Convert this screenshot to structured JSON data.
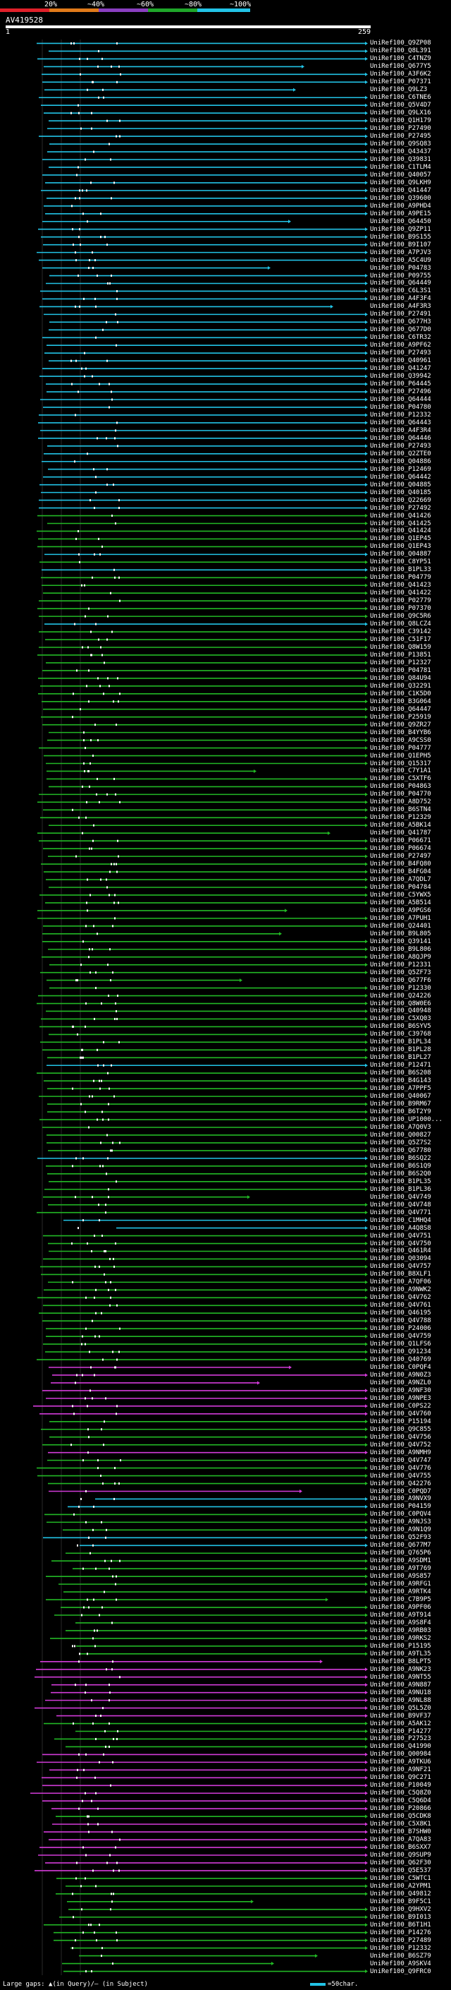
{
  "legend": {
    "labels": [
      "20%",
      "~40%",
      "~60%",
      "~80%",
      "~100%"
    ],
    "bands": [
      {
        "color": "#e0202a"
      },
      {
        "color": "#e07a1a"
      },
      {
        "color": "#8a3fc0"
      },
      {
        "color": "#1fa62a"
      },
      {
        "color": "#22c3e6"
      }
    ]
  },
  "query": {
    "id": "AV419528",
    "start": "1",
    "end": "259"
  },
  "colors": {
    "cyan": "#22c3e6",
    "green": "#22b825",
    "magenta": "#d23bd8",
    "white": "#ffffff",
    "grid": "#2a2a2a"
  },
  "hits": [
    {
      "id": "UniRef100_Q9ZP08",
      "c": "cyan"
    },
    {
      "id": "UniRef100_Q8L391",
      "c": "cyan"
    },
    {
      "id": "UniRef100_C4TNZ9",
      "c": "cyan"
    },
    {
      "id": "UniRef100_Q677Y5",
      "c": "cyan"
    },
    {
      "id": "UniRef100_A3F6K2",
      "c": "cyan"
    },
    {
      "id": "UniRef100_P07371",
      "c": "cyan"
    },
    {
      "id": "UniRef100_Q9LZ3",
      "c": "cyan"
    },
    {
      "id": "UniRef100_C6TNE6",
      "c": "cyan"
    },
    {
      "id": "UniRef100_Q5V4D7",
      "c": "cyan"
    },
    {
      "id": "UniRef100_Q9LX16",
      "c": "cyan"
    },
    {
      "id": "UniRef100_Q1H179",
      "c": "cyan"
    },
    {
      "id": "UniRef100_P27490",
      "c": "cyan"
    },
    {
      "id": "UniRef100_P27495",
      "c": "cyan"
    },
    {
      "id": "UniRef100_Q9SQ83",
      "c": "cyan"
    },
    {
      "id": "UniRef100_Q43437",
      "c": "cyan"
    },
    {
      "id": "UniRef100_Q39831",
      "c": "cyan"
    },
    {
      "id": "UniRef100_C1TLM4",
      "c": "cyan"
    },
    {
      "id": "UniRef100_Q40057",
      "c": "cyan"
    },
    {
      "id": "UniRef100_Q9LKH9",
      "c": "cyan"
    },
    {
      "id": "UniRef100_Q41447",
      "c": "cyan"
    },
    {
      "id": "UniRef100_Q39600",
      "c": "cyan"
    },
    {
      "id": "UniRef100_A9PHD4",
      "c": "cyan"
    },
    {
      "id": "UniRef100_A9PE15",
      "c": "cyan"
    },
    {
      "id": "UniRef100_Q64450",
      "c": "cyan"
    },
    {
      "id": "UniRef100_Q9ZP11",
      "c": "cyan"
    },
    {
      "id": "UniRef100_B9S155",
      "c": "cyan"
    },
    {
      "id": "UniRef100_B9I107",
      "c": "cyan"
    },
    {
      "id": "UniRef100_A7PJV3",
      "c": "cyan"
    },
    {
      "id": "UniRef100_A5C4U9",
      "c": "cyan"
    },
    {
      "id": "UniRef100_P04783",
      "c": "cyan"
    },
    {
      "id": "UniRef100_P09755",
      "c": "cyan"
    },
    {
      "id": "UniRef100_Q64449",
      "c": "cyan"
    },
    {
      "id": "UniRef100_C6L3S1",
      "c": "cyan"
    },
    {
      "id": "UniRef100_A4F3F4",
      "c": "cyan"
    },
    {
      "id": "UniRef100_A4F3R3",
      "c": "cyan"
    },
    {
      "id": "UniRef100_P27491",
      "c": "cyan"
    },
    {
      "id": "UniRef100_Q677H3",
      "c": "cyan"
    },
    {
      "id": "UniRef100_Q677D0",
      "c": "cyan"
    },
    {
      "id": "UniRef100_C6TR32",
      "c": "cyan"
    },
    {
      "id": "UniRef100_A9PF62",
      "c": "cyan"
    },
    {
      "id": "UniRef100_P27493",
      "c": "cyan"
    },
    {
      "id": "UniRef100_Q40961",
      "c": "cyan"
    },
    {
      "id": "UniRef100_Q41247",
      "c": "cyan"
    },
    {
      "id": "UniRef100_Q39942",
      "c": "cyan"
    },
    {
      "id": "UniRef100_P64445",
      "c": "cyan"
    },
    {
      "id": "UniRef100_P27496",
      "c": "cyan"
    },
    {
      "id": "UniRef100_Q64444",
      "c": "cyan"
    },
    {
      "id": "UniRef100_P04780",
      "c": "cyan"
    },
    {
      "id": "UniRef100_P12332",
      "c": "cyan"
    },
    {
      "id": "UniRef100_Q64443",
      "c": "cyan"
    },
    {
      "id": "UniRef100_A4F3R4",
      "c": "cyan"
    },
    {
      "id": "UniRef100_Q64446",
      "c": "cyan"
    },
    {
      "id": "UniRef100_P27493",
      "c": "cyan"
    },
    {
      "id": "UniRef100_Q2ZTE0",
      "c": "cyan"
    },
    {
      "id": "UniRef100_Q04886",
      "c": "cyan"
    },
    {
      "id": "UniRef100_P12469",
      "c": "cyan"
    },
    {
      "id": "UniRef100_Q64442",
      "c": "cyan"
    },
    {
      "id": "UniRef100_Q04885",
      "c": "cyan"
    },
    {
      "id": "UniRef100_Q40185",
      "c": "cyan"
    },
    {
      "id": "UniRef100_Q22669",
      "c": "cyan"
    },
    {
      "id": "UniRef100_P27492",
      "c": "cyan"
    },
    {
      "id": "UniRef100_Q41426",
      "c": "green"
    },
    {
      "id": "UniRef100_Q41425",
      "c": "green"
    },
    {
      "id": "UniRef100_Q41424",
      "c": "green"
    },
    {
      "id": "UniRef100_Q1EP45",
      "c": "green"
    },
    {
      "id": "UniRef100_Q1EP43",
      "c": "green"
    },
    {
      "id": "UniRef100_Q04887",
      "c": "cyan"
    },
    {
      "id": "UniRef100_C8YP51",
      "c": "green"
    },
    {
      "id": "UniRef100_B1PL33",
      "c": "cyan"
    },
    {
      "id": "UniRef100_P04779",
      "c": "green"
    },
    {
      "id": "UniRef100_Q41423",
      "c": "green"
    },
    {
      "id": "UniRef100_Q41422",
      "c": "green"
    },
    {
      "id": "UniRef100_P02779",
      "c": "green"
    },
    {
      "id": "UniRef100_P07370",
      "c": "green"
    },
    {
      "id": "UniRef100_Q9C5R6",
      "c": "green"
    },
    {
      "id": "UniRef100_Q8LCZ4",
      "c": "cyan"
    },
    {
      "id": "UniRef100_C39142",
      "c": "green"
    },
    {
      "id": "UniRef100_C51F17",
      "c": "green"
    },
    {
      "id": "UniRef100_Q8W159",
      "c": "green"
    },
    {
      "id": "UniRef100_P13851",
      "c": "green"
    },
    {
      "id": "UniRef100_P12327",
      "c": "green"
    },
    {
      "id": "UniRef100_P04781",
      "c": "green"
    },
    {
      "id": "UniRef100_Q84U94",
      "c": "green"
    },
    {
      "id": "UniRef100_Q32291",
      "c": "green"
    },
    {
      "id": "UniRef100_C1K5D0",
      "c": "green"
    },
    {
      "id": "UniRef100_B3G064",
      "c": "green"
    },
    {
      "id": "UniRef100_Q64447",
      "c": "green"
    },
    {
      "id": "UniRef100_P25919",
      "c": "green"
    },
    {
      "id": "UniRef100_Q9ZR27",
      "c": "green"
    },
    {
      "id": "UniRef100_B4YYB6",
      "c": "green"
    },
    {
      "id": "UniRef100_A9CSS0",
      "c": "green"
    },
    {
      "id": "UniRef100_P04777",
      "c": "green"
    },
    {
      "id": "UniRef100_Q1EPH5",
      "c": "green"
    },
    {
      "id": "UniRef100_Q15317",
      "c": "green"
    },
    {
      "id": "UniRef100_C7Y1A1",
      "c": "green"
    },
    {
      "id": "UniRef100_C5XTF6",
      "c": "green"
    },
    {
      "id": "UniRef100_P04863",
      "c": "green"
    },
    {
      "id": "UniRef100_P04770",
      "c": "green"
    },
    {
      "id": "UniRef100_A8D752",
      "c": "green"
    },
    {
      "id": "UniRef100_B6STN4",
      "c": "green"
    },
    {
      "id": "UniRef100_P12329",
      "c": "green"
    },
    {
      "id": "UniRef100_A5BK14",
      "c": "green"
    },
    {
      "id": "UniRef100_Q41787",
      "c": "green"
    },
    {
      "id": "UniRef100_P06671",
      "c": "green"
    },
    {
      "id": "UniRef100_P06674",
      "c": "green"
    },
    {
      "id": "UniRef100_P27497",
      "c": "green"
    },
    {
      "id": "UniRef100_B4FQ80",
      "c": "green"
    },
    {
      "id": "UniRef100_B4FG04",
      "c": "green"
    },
    {
      "id": "UniRef100_A7QDL7",
      "c": "green"
    },
    {
      "id": "UniRef100_P04784",
      "c": "green"
    },
    {
      "id": "UniRef100_C5YWX5",
      "c": "green"
    },
    {
      "id": "UniRef100_A5B514",
      "c": "green"
    },
    {
      "id": "UniRef100_A9PGS6",
      "c": "green"
    },
    {
      "id": "UniRef100_A7PUH1",
      "c": "green"
    },
    {
      "id": "UniRef100_Q24401",
      "c": "green"
    },
    {
      "id": "UniRef100_B9L805",
      "c": "green"
    },
    {
      "id": "UniRef100_Q39141",
      "c": "green"
    },
    {
      "id": "UniRef100_B9L806",
      "c": "green"
    },
    {
      "id": "UniRef100_A8QJP9",
      "c": "green"
    },
    {
      "id": "UniRef100_P12331",
      "c": "green"
    },
    {
      "id": "UniRef100_Q5ZF73",
      "c": "green"
    },
    {
      "id": "UniRef100_Q677F6",
      "c": "green"
    },
    {
      "id": "UniRef100_P12330",
      "c": "green"
    },
    {
      "id": "UniRef100_Q24226",
      "c": "green"
    },
    {
      "id": "UniRef100_Q8W0E6",
      "c": "green"
    },
    {
      "id": "UniRef100_Q40948",
      "c": "green"
    },
    {
      "id": "UniRef100_C5XQ03",
      "c": "green"
    },
    {
      "id": "UniRef100_B6SYV5",
      "c": "green"
    },
    {
      "id": "UniRef100_C39768",
      "c": "green"
    },
    {
      "id": "UniRef100_B1PL34",
      "c": "green"
    },
    {
      "id": "UniRef100_B1PL28",
      "c": "green"
    },
    {
      "id": "UniRef100_B1PL27",
      "c": "green"
    },
    {
      "id": "UniRef100_P12471",
      "c": "cyan"
    },
    {
      "id": "UniRef100_B6S208",
      "c": "green"
    },
    {
      "id": "UniRef100_B4G143",
      "c": "green"
    },
    {
      "id": "UniRef100_A7PPF5",
      "c": "green"
    },
    {
      "id": "UniRef100_Q40067",
      "c": "green"
    },
    {
      "id": "UniRef100_B9RM67",
      "c": "green"
    },
    {
      "id": "UniRef100_B6T2Y9",
      "c": "green"
    },
    {
      "id": "UniRef100_UP1000...",
      "c": "green"
    },
    {
      "id": "UniRef100_A7Q0V3",
      "c": "green"
    },
    {
      "id": "UniRef100_Q00827",
      "c": "green"
    },
    {
      "id": "UniRef100_Q5Z7S2",
      "c": "green"
    },
    {
      "id": "UniRef100_Q67780",
      "c": "green"
    },
    {
      "id": "UniRef100_B6SQ22",
      "c": "cyan"
    },
    {
      "id": "UniRef100_B6S1Q9",
      "c": "green"
    },
    {
      "id": "UniRef100_B6S2Q0",
      "c": "green"
    },
    {
      "id": "UniRef100_B1PL35",
      "c": "green"
    },
    {
      "id": "UniRef100_B1PL36",
      "c": "green"
    },
    {
      "id": "UniRef100_Q4V749",
      "c": "green"
    },
    {
      "id": "UniRef100_Q4V748",
      "c": "green"
    },
    {
      "id": "UniRef100_Q4V771",
      "c": "green"
    },
    {
      "id": "UniRef100_C1MHQ4",
      "c": "cyan"
    },
    {
      "id": "UniRef100_A4Q8S8",
      "c": "cyan"
    },
    {
      "id": "UniRef100_Q4V751",
      "c": "green"
    },
    {
      "id": "UniRef100_Q4V750",
      "c": "green"
    },
    {
      "id": "UniRef100_Q461R4",
      "c": "green"
    },
    {
      "id": "UniRef100_Q03094",
      "c": "green"
    },
    {
      "id": "UniRef100_Q4V757",
      "c": "green"
    },
    {
      "id": "UniRef100_B8XLF1",
      "c": "green"
    },
    {
      "id": "UniRef100_A7QF06",
      "c": "green"
    },
    {
      "id": "UniRef100_A9NWK2",
      "c": "green"
    },
    {
      "id": "UniRef100_Q4V762",
      "c": "green"
    },
    {
      "id": "UniRef100_Q4V761",
      "c": "green"
    },
    {
      "id": "UniRef100_Q46195",
      "c": "green"
    },
    {
      "id": "UniRef100_Q4V788",
      "c": "green"
    },
    {
      "id": "UniRef100_P24006",
      "c": "green"
    },
    {
      "id": "UniRef100_Q4V759",
      "c": "green"
    },
    {
      "id": "UniRef100_Q1LFS6",
      "c": "green"
    },
    {
      "id": "UniRef100_Q91234",
      "c": "green"
    },
    {
      "id": "UniRef100_Q40769",
      "c": "green"
    },
    {
      "id": "UniRef100_C0PQF4",
      "c": "magenta"
    },
    {
      "id": "UniRef100_A9N0Z3",
      "c": "magenta"
    },
    {
      "id": "UniRef100_A9NZL0",
      "c": "magenta"
    },
    {
      "id": "UniRef100_A9NF30",
      "c": "magenta"
    },
    {
      "id": "UniRef100_A9NPE3",
      "c": "magenta"
    },
    {
      "id": "UniRef100_C0PS22",
      "c": "magenta"
    },
    {
      "id": "UniRef100_Q4V760",
      "c": "magenta"
    },
    {
      "id": "UniRef100_P15194",
      "c": "green"
    },
    {
      "id": "UniRef100_Q9C855",
      "c": "green"
    },
    {
      "id": "UniRef100_Q4V756",
      "c": "green"
    },
    {
      "id": "UniRef100_Q4V752",
      "c": "green"
    },
    {
      "id": "UniRef100_A9NMH9",
      "c": "magenta"
    },
    {
      "id": "UniRef100_Q4V747",
      "c": "green"
    },
    {
      "id": "UniRef100_Q4V776",
      "c": "green"
    },
    {
      "id": "UniRef100_Q4V755",
      "c": "green"
    },
    {
      "id": "UniRef100_Q42276",
      "c": "green"
    },
    {
      "id": "UniRef100_C0PQD7",
      "c": "magenta"
    },
    {
      "id": "UniRef100_A9NVX9",
      "c": "cyan"
    },
    {
      "id": "UniRef100_P04159",
      "c": "cyan"
    },
    {
      "id": "UniRef100_C0PQV4",
      "c": "green"
    },
    {
      "id": "UniRef100_A9NJS3",
      "c": "green"
    },
    {
      "id": "UniRef100_A9N1Q9",
      "c": "green"
    },
    {
      "id": "UniRef100_Q52F93",
      "c": "cyan"
    },
    {
      "id": "UniRef100_Q677M7",
      "c": "cyan"
    },
    {
      "id": "UniRef100_Q765P6",
      "c": "green"
    },
    {
      "id": "UniRef100_A9SDM1",
      "c": "green"
    },
    {
      "id": "UniRef100_A9T769",
      "c": "green"
    },
    {
      "id": "UniRef100_A9S857",
      "c": "green"
    },
    {
      "id": "UniRef100_A9RFG1",
      "c": "green"
    },
    {
      "id": "UniRef100_A9RTK4",
      "c": "green"
    },
    {
      "id": "UniRef100_C7B9P5",
      "c": "green"
    },
    {
      "id": "UniRef100_A9PF06",
      "c": "green"
    },
    {
      "id": "UniRef100_A9T914",
      "c": "green"
    },
    {
      "id": "UniRef100_A9S8F4",
      "c": "green"
    },
    {
      "id": "UniRef100_A9RB03",
      "c": "green"
    },
    {
      "id": "UniRef100_A9RKS2",
      "c": "green"
    },
    {
      "id": "UniRef100_P15195",
      "c": "green"
    },
    {
      "id": "UniRef100_A9TL35",
      "c": "green"
    },
    {
      "id": "UniRef100_B8LPT5",
      "c": "magenta"
    },
    {
      "id": "UniRef100_A9NK23",
      "c": "magenta"
    },
    {
      "id": "UniRef100_A9NT55",
      "c": "magenta"
    },
    {
      "id": "UniRef100_A9N887",
      "c": "magenta"
    },
    {
      "id": "UniRef100_A9NU18",
      "c": "magenta"
    },
    {
      "id": "UniRef100_A9NL88",
      "c": "magenta"
    },
    {
      "id": "UniRef100_Q5L5Z0",
      "c": "magenta"
    },
    {
      "id": "UniRef100_B9VF37",
      "c": "magenta"
    },
    {
      "id": "UniRef100_A5AK12",
      "c": "green"
    },
    {
      "id": "UniRef100_P14277",
      "c": "green"
    },
    {
      "id": "UniRef100_P27523",
      "c": "green"
    },
    {
      "id": "UniRef100_Q41990",
      "c": "green"
    },
    {
      "id": "UniRef100_Q00984",
      "c": "magenta"
    },
    {
      "id": "UniRef100_A9TKU6",
      "c": "magenta"
    },
    {
      "id": "UniRef100_A9NF21",
      "c": "magenta"
    },
    {
      "id": "UniRef100_Q9C271",
      "c": "magenta"
    },
    {
      "id": "UniRef100_P10049",
      "c": "magenta"
    },
    {
      "id": "UniRef100_C5Q8Z0",
      "c": "magenta"
    },
    {
      "id": "UniRef100_C5Q6D4",
      "c": "magenta"
    },
    {
      "id": "UniRef100_P20866",
      "c": "magenta"
    },
    {
      "id": "UniRef100_Q5CDK8",
      "c": "green"
    },
    {
      "id": "UniRef100_C5X8K1",
      "c": "magenta"
    },
    {
      "id": "UniRef100_B7SHW0",
      "c": "magenta"
    },
    {
      "id": "UniRef100_A7QA83",
      "c": "magenta"
    },
    {
      "id": "UniRef100_B6SXX7",
      "c": "magenta"
    },
    {
      "id": "UniRef100_Q9SUP9",
      "c": "magenta"
    },
    {
      "id": "UniRef100_Q62F30",
      "c": "magenta"
    },
    {
      "id": "UniRef100_Q5E537",
      "c": "magenta"
    },
    {
      "id": "UniRef100_C5WTC1",
      "c": "green"
    },
    {
      "id": "UniRef100_A2YPM1",
      "c": "green"
    },
    {
      "id": "UniRef100_Q49812",
      "c": "green"
    },
    {
      "id": "UniRef100_B9F5C1",
      "c": "green"
    },
    {
      "id": "UniRef100_Q9HXV2",
      "c": "green"
    },
    {
      "id": "UniRef100_B9I013",
      "c": "green"
    },
    {
      "id": "UniRef100_B6T1H1",
      "c": "green"
    },
    {
      "id": "UniRef100_P14276",
      "c": "green"
    },
    {
      "id": "UniRef100_P27489",
      "c": "green"
    },
    {
      "id": "UniRef100_P12332",
      "c": "green"
    },
    {
      "id": "UniRef100_B6SZ79",
      "c": "green"
    },
    {
      "id": "UniRef100_A9SKV4",
      "c": "green"
    },
    {
      "id": "UniRef100_Q9FRC0",
      "c": "green"
    }
  ],
  "footer": {
    "text": "Large gaps: ▲(in Query)/– (in Subject)",
    "key": "=50char."
  }
}
